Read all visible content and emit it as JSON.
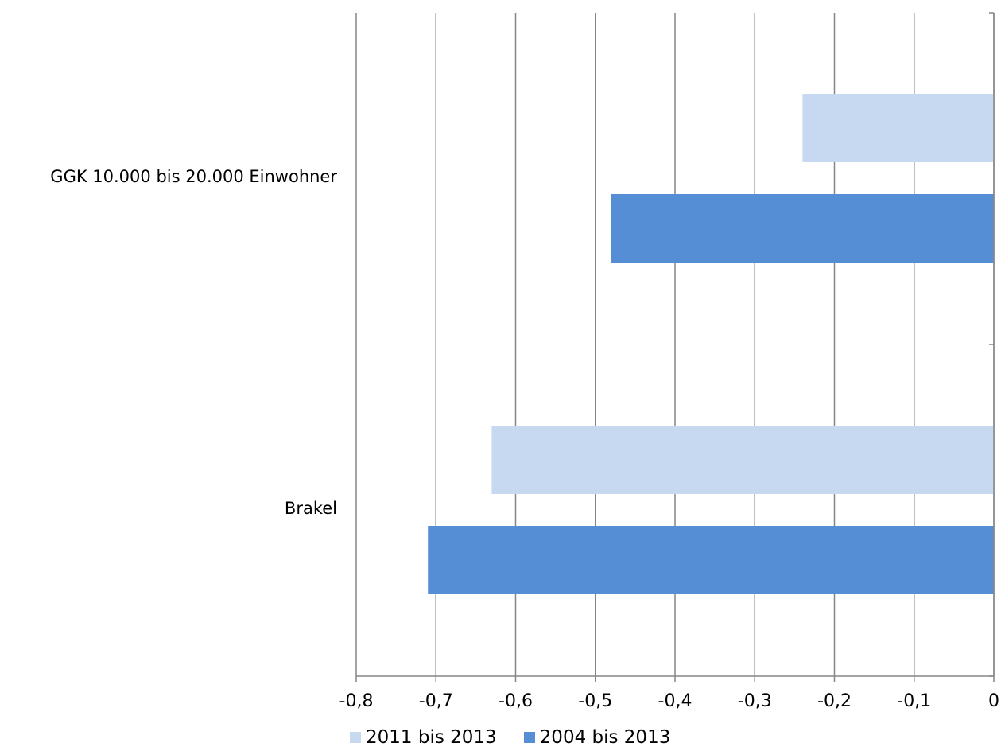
{
  "chart_data": {
    "type": "bar",
    "orientation": "horizontal",
    "categories": [
      "GGK 10.000 bis 20.000 Einwohner",
      "Brakel"
    ],
    "series": [
      {
        "name": "2011 bis 2013",
        "color": "#c6d9f1",
        "values": [
          -0.24,
          -0.63
        ]
      },
      {
        "name": "2004 bis 2013",
        "color": "#558ed5",
        "values": [
          -0.48,
          -0.71
        ]
      }
    ],
    "xlim": [
      -0.8,
      0
    ],
    "xticks": [
      -0.8,
      -0.7,
      -0.6,
      -0.5,
      -0.4,
      -0.3,
      -0.2,
      -0.1,
      0
    ],
    "xtick_labels": [
      "-0,8",
      "-0,7",
      "-0,6",
      "-0,5",
      "-0,4",
      "-0,3",
      "-0,2",
      "-0,1",
      "0"
    ],
    "grid": "vertical",
    "legend_position": "bottom",
    "gridline_color": "#868686"
  }
}
